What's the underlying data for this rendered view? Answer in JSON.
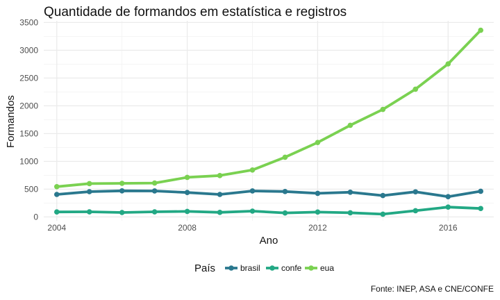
{
  "chart_data": {
    "type": "line",
    "title": "Quantidade de formandos em estatística e registros",
    "xlabel": "Ano",
    "ylabel": "Formandos",
    "caption": "Fonte: INEP, ASA e CNE/CONFE",
    "legend_title": "País",
    "legend_position": "bottom",
    "grid": true,
    "xlim": [
      2003.6,
      2017.4
    ],
    "ylim": [
      -70,
      3530
    ],
    "x_ticks": [
      2004,
      2008,
      2012,
      2016
    ],
    "y_ticks": [
      0,
      500,
      1000,
      1500,
      2000,
      2500,
      3000,
      3500
    ],
    "x": [
      2004,
      2005,
      2006,
      2007,
      2008,
      2009,
      2010,
      2011,
      2012,
      2013,
      2014,
      2015,
      2016,
      2017
    ],
    "series": [
      {
        "name": "brasil",
        "color": "#2a788e",
        "values": [
          405,
          455,
          470,
          468,
          440,
          405,
          468,
          458,
          425,
          445,
          385,
          452,
          365,
          462
        ]
      },
      {
        "name": "confe",
        "color": "#22a884",
        "values": [
          90,
          92,
          80,
          92,
          100,
          82,
          105,
          72,
          88,
          75,
          50,
          112,
          178,
          152
        ]
      },
      {
        "name": "eua",
        "color": "#7ad151",
        "values": [
          545,
          600,
          605,
          610,
          712,
          745,
          845,
          1075,
          1340,
          1650,
          1935,
          2300,
          2755,
          3360
        ]
      }
    ]
  }
}
